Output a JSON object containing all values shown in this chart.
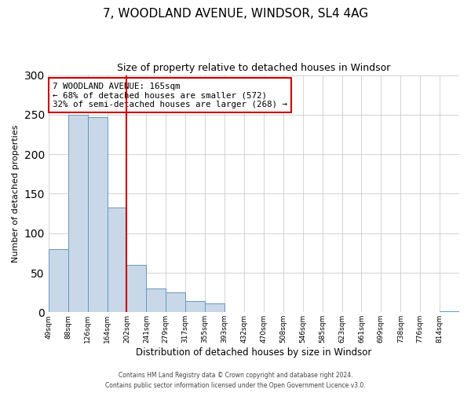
{
  "title": "7, WOODLAND AVENUE, WINDSOR, SL4 4AG",
  "subtitle": "Size of property relative to detached houses in Windsor",
  "xlabel": "Distribution of detached houses by size in Windsor",
  "ylabel": "Number of detached properties",
  "bin_labels": [
    "49sqm",
    "88sqm",
    "126sqm",
    "164sqm",
    "202sqm",
    "241sqm",
    "279sqm",
    "317sqm",
    "355sqm",
    "393sqm",
    "432sqm",
    "470sqm",
    "508sqm",
    "546sqm",
    "585sqm",
    "623sqm",
    "661sqm",
    "699sqm",
    "738sqm",
    "776sqm",
    "814sqm"
  ],
  "bar_heights": [
    80,
    250,
    247,
    133,
    60,
    30,
    25,
    14,
    11,
    0,
    0,
    0,
    0,
    0,
    0,
    0,
    0,
    0,
    0,
    0,
    1
  ],
  "bar_color": "#c8d8e8",
  "bar_edgecolor": "#6699bb",
  "vline_x_index": 4,
  "vline_color": "#cc0000",
  "annotation_text": "7 WOODLAND AVENUE: 165sqm\n← 68% of detached houses are smaller (572)\n32% of semi-detached houses are larger (268) →",
  "annotation_box_edgecolor": "#cc0000",
  "ylim": [
    0,
    300
  ],
  "yticks": [
    0,
    50,
    100,
    150,
    200,
    250,
    300
  ],
  "footer_line1": "Contains HM Land Registry data © Crown copyright and database right 2024.",
  "footer_line2": "Contains public sector information licensed under the Open Government Licence v3.0.",
  "background_color": "#ffffff",
  "grid_color": "#cccccc"
}
